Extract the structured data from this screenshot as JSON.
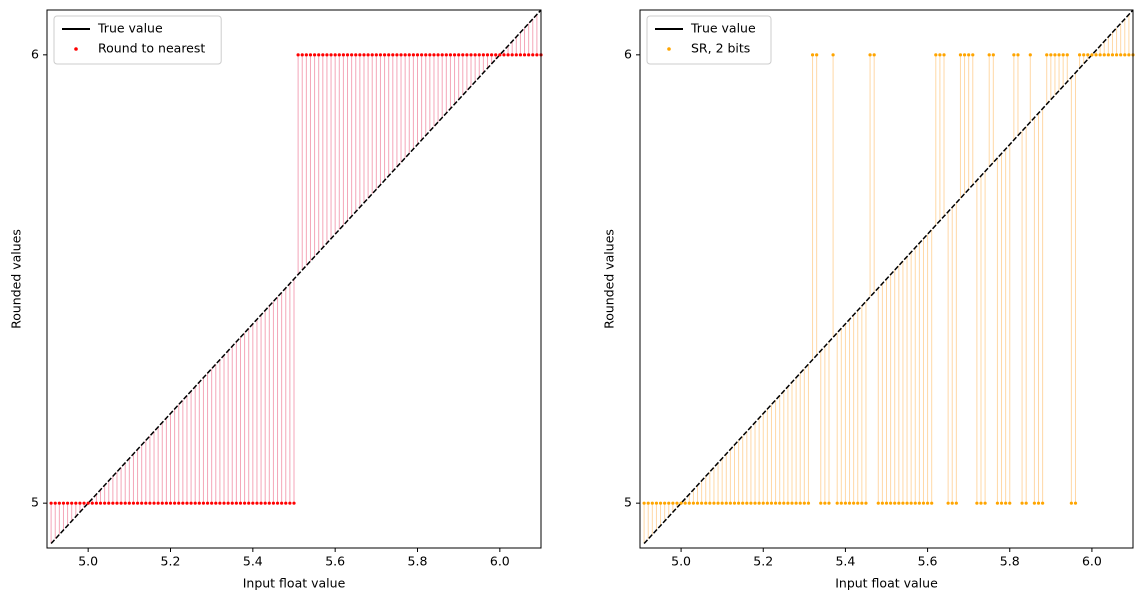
{
  "chart_data": [
    {
      "type": "stem-scatter",
      "xlabel": "Input float value",
      "ylabel": "Rounded values",
      "xlim": [
        4.9,
        6.1
      ],
      "ylim": [
        4.9,
        6.1
      ],
      "xticks": [
        {
          "value": 5,
          "label": "5.0"
        },
        {
          "value": 5.2,
          "label": "5.2"
        },
        {
          "value": 5.4,
          "label": "5.4"
        },
        {
          "value": 5.6,
          "label": "5.6"
        },
        {
          "value": 5.8,
          "label": "5.8"
        },
        {
          "value": 6,
          "label": "6.0"
        }
      ],
      "yticks": [
        5,
        6
      ],
      "legend": "upper left",
      "reference": {
        "name": "True value",
        "color": "#000000"
      },
      "x": [
        4.91,
        4.92,
        4.93,
        4.94,
        4.95,
        4.96,
        4.97,
        4.98,
        4.99,
        5.0,
        5.01,
        5.02,
        5.03,
        5.04,
        5.05,
        5.06,
        5.07,
        5.08,
        5.09,
        5.1,
        5.11,
        5.12,
        5.13,
        5.14,
        5.15,
        5.16,
        5.17,
        5.18,
        5.19,
        5.2,
        5.21,
        5.22,
        5.23,
        5.24,
        5.25,
        5.26,
        5.27,
        5.28,
        5.29,
        5.3,
        5.31,
        5.32,
        5.33,
        5.34,
        5.35,
        5.36,
        5.37,
        5.38,
        5.39,
        5.4,
        5.41,
        5.42,
        5.43,
        5.44,
        5.45,
        5.46,
        5.47,
        5.48,
        5.49,
        5.5,
        5.51,
        5.52,
        5.53,
        5.54,
        5.55,
        5.56,
        5.57,
        5.58,
        5.59,
        5.6,
        5.61,
        5.62,
        5.63,
        5.64,
        5.65,
        5.66,
        5.67,
        5.68,
        5.69,
        5.7,
        5.71,
        5.72,
        5.73,
        5.74,
        5.75,
        5.76,
        5.77,
        5.78,
        5.79,
        5.8,
        5.81,
        5.82,
        5.83,
        5.84,
        5.85,
        5.86,
        5.87,
        5.88,
        5.89,
        5.9,
        5.91,
        5.92,
        5.93,
        5.94,
        5.95,
        5.96,
        5.97,
        5.98,
        5.99,
        6.0,
        6.01,
        6.02,
        6.03,
        6.04,
        6.05,
        6.06,
        6.07,
        6.08,
        6.09,
        6.1
      ],
      "series": [
        {
          "name": "Round to nearest",
          "color": "#ff0000",
          "stem_color": "#f4a6b8",
          "values": [
            5,
            5,
            5,
            5,
            5,
            5,
            5,
            5,
            5,
            5,
            5,
            5,
            5,
            5,
            5,
            5,
            5,
            5,
            5,
            5,
            5,
            5,
            5,
            5,
            5,
            5,
            5,
            5,
            5,
            5,
            5,
            5,
            5,
            5,
            5,
            5,
            5,
            5,
            5,
            5,
            5,
            5,
            5,
            5,
            5,
            5,
            5,
            5,
            5,
            5,
            5,
            5,
            5,
            5,
            5,
            5,
            5,
            5,
            5,
            5,
            6,
            6,
            6,
            6,
            6,
            6,
            6,
            6,
            6,
            6,
            6,
            6,
            6,
            6,
            6,
            6,
            6,
            6,
            6,
            6,
            6,
            6,
            6,
            6,
            6,
            6,
            6,
            6,
            6,
            6,
            6,
            6,
            6,
            6,
            6,
            6,
            6,
            6,
            6,
            6,
            6,
            6,
            6,
            6,
            6,
            6,
            6,
            6,
            6,
            6,
            6,
            6,
            6,
            6,
            6,
            6,
            6,
            6,
            6,
            6
          ]
        }
      ]
    },
    {
      "type": "stem-scatter",
      "xlabel": "Input float value",
      "ylabel": "Rounded values",
      "xlim": [
        4.9,
        6.1
      ],
      "ylim": [
        4.9,
        6.1
      ],
      "xticks": [
        {
          "value": 5,
          "label": "5.0"
        },
        {
          "value": 5.2,
          "label": "5.2"
        },
        {
          "value": 5.4,
          "label": "5.4"
        },
        {
          "value": 5.6,
          "label": "5.6"
        },
        {
          "value": 5.8,
          "label": "5.8"
        },
        {
          "value": 6,
          "label": "6.0"
        }
      ],
      "yticks": [
        5,
        6
      ],
      "legend": "upper left",
      "reference": {
        "name": "True value",
        "color": "#000000"
      },
      "x": [
        4.91,
        4.92,
        4.93,
        4.94,
        4.95,
        4.96,
        4.97,
        4.98,
        4.99,
        5.0,
        5.01,
        5.02,
        5.03,
        5.04,
        5.05,
        5.06,
        5.07,
        5.08,
        5.09,
        5.1,
        5.11,
        5.12,
        5.13,
        5.14,
        5.15,
        5.16,
        5.17,
        5.18,
        5.19,
        5.2,
        5.21,
        5.22,
        5.23,
        5.24,
        5.25,
        5.26,
        5.27,
        5.28,
        5.29,
        5.3,
        5.31,
        5.32,
        5.33,
        5.34,
        5.35,
        5.36,
        5.37,
        5.38,
        5.39,
        5.4,
        5.41,
        5.42,
        5.43,
        5.44,
        5.45,
        5.46,
        5.47,
        5.48,
        5.49,
        5.5,
        5.51,
        5.52,
        5.53,
        5.54,
        5.55,
        5.56,
        5.57,
        5.58,
        5.59,
        5.6,
        5.61,
        5.62,
        5.63,
        5.64,
        5.65,
        5.66,
        5.67,
        5.68,
        5.69,
        5.7,
        5.71,
        5.72,
        5.73,
        5.74,
        5.75,
        5.76,
        5.77,
        5.78,
        5.79,
        5.8,
        5.81,
        5.82,
        5.83,
        5.84,
        5.85,
        5.86,
        5.87,
        5.88,
        5.89,
        5.9,
        5.91,
        5.92,
        5.93,
        5.94,
        5.95,
        5.96,
        5.97,
        5.98,
        5.99,
        6.0,
        6.01,
        6.02,
        6.03,
        6.04,
        6.05,
        6.06,
        6.07,
        6.08,
        6.09,
        6.1
      ],
      "series": [
        {
          "name": "SR, 2 bits",
          "color": "#ffa500",
          "stem_color": "#ffd8a6",
          "values": [
            5,
            5,
            5,
            5,
            5,
            5,
            5,
            5,
            5,
            5,
            5,
            5,
            5,
            5,
            5,
            5,
            5,
            5,
            5,
            5,
            5,
            5,
            5,
            5,
            5,
            5,
            5,
            5,
            5,
            5,
            5,
            5,
            5,
            5,
            5,
            5,
            5,
            5,
            5,
            5,
            5,
            6,
            6,
            5,
            5,
            5,
            6,
            5,
            5,
            5,
            5,
            5,
            5,
            5,
            5,
            6,
            6,
            5,
            5,
            5,
            5,
            5,
            5,
            5,
            5,
            5,
            5,
            5,
            5,
            5,
            5,
            6,
            6,
            6,
            5,
            5,
            5,
            6,
            6,
            6,
            6,
            5,
            5,
            5,
            6,
            6,
            5,
            5,
            5,
            5,
            6,
            6,
            5,
            5,
            6,
            5,
            5,
            5,
            6,
            6,
            6,
            6,
            6,
            6,
            5,
            5,
            6,
            6,
            6,
            6,
            6,
            6,
            6,
            6,
            6,
            6,
            6,
            6,
            6,
            6
          ]
        }
      ]
    }
  ]
}
